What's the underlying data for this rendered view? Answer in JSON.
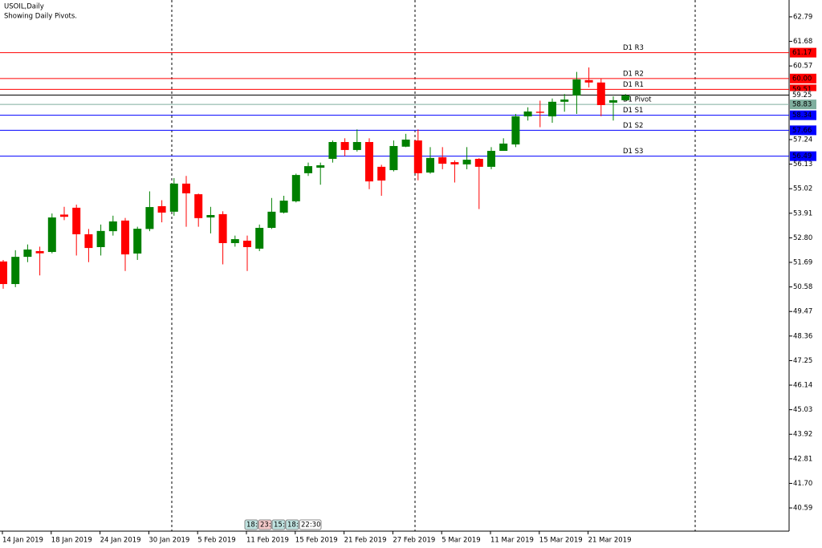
{
  "chart_data": {
    "type": "candlestick",
    "title": "USOIL,Daily",
    "subtitle": "Showing Daily Pivots.",
    "categories": [
      "14 Jan 2019",
      null,
      null,
      null,
      "18 Jan 2019",
      null,
      null,
      null,
      "24 Jan 2019",
      null,
      null,
      null,
      "30 Jan 2019",
      null,
      null,
      null,
      "5 Feb 2019",
      null,
      null,
      null,
      "11 Feb 2019",
      null,
      null,
      null,
      "15 Feb 2019",
      null,
      null,
      null,
      "21 Feb 2019",
      null,
      null,
      null,
      "27 Feb 2019",
      null,
      null,
      null,
      "5 Mar 2019",
      null,
      null,
      null,
      "11 Mar 2019",
      null,
      null,
      null,
      "15 Mar 2019",
      null,
      null,
      null,
      "21 Mar 2019",
      null,
      null,
      null
    ],
    "open": [
      51.73,
      50.71,
      51.94,
      52.2,
      52.16,
      53.85,
      54.16,
      52.96,
      52.38,
      53.1,
      53.58,
      52.09,
      53.2,
      54.23,
      53.98,
      55.25,
      54.77,
      53.72,
      53.87,
      52.56,
      52.67,
      52.31,
      53.25,
      53.94,
      54.45,
      55.72,
      55.97,
      56.37,
      57.13,
      56.77,
      57.13,
      56.01,
      55.86,
      56.92,
      57.2,
      55.75,
      56.44,
      56.22,
      56.12,
      56.37,
      56.01,
      56.73,
      57.02,
      58.29,
      58.5,
      58.29,
      58.95,
      59.23,
      59.93,
      59.82,
      58.91,
      59.02
    ],
    "high": [
      51.8,
      52.24,
      52.5,
      52.4,
      53.9,
      54.2,
      54.3,
      53.2,
      53.4,
      53.8,
      53.7,
      53.3,
      54.9,
      54.5,
      55.5,
      55.6,
      54.8,
      54.2,
      54.0,
      52.9,
      52.9,
      53.4,
      54.6,
      54.7,
      55.7,
      56.2,
      56.2,
      57.2,
      57.3,
      57.7,
      57.3,
      56.1,
      57.2,
      57.5,
      57.7,
      56.9,
      56.9,
      56.3,
      56.9,
      56.4,
      56.9,
      57.3,
      58.4,
      58.7,
      59.0,
      59.1,
      59.3,
      60.3,
      60.5,
      60.0,
      59.2,
      59.3
    ],
    "low": [
      50.5,
      50.57,
      51.7,
      51.1,
      52.1,
      53.6,
      52.0,
      51.7,
      52.0,
      52.9,
      51.3,
      51.8,
      53.1,
      53.5,
      53.8,
      53.3,
      53.3,
      53.0,
      51.6,
      52.4,
      51.3,
      52.2,
      53.2,
      53.9,
      54.4,
      55.6,
      55.2,
      56.2,
      56.5,
      56.7,
      55.0,
      54.7,
      55.8,
      56.9,
      55.4,
      55.7,
      55.9,
      55.3,
      55.9,
      54.1,
      55.9,
      56.9,
      56.9,
      58.1,
      57.8,
      58.0,
      58.5,
      58.4,
      59.6,
      58.3,
      58.1,
      59.0
    ],
    "close": [
      50.71,
      51.94,
      52.27,
      52.1,
      53.72,
      53.75,
      52.96,
      52.34,
      53.11,
      53.54,
      52.05,
      53.21,
      54.19,
      53.94,
      55.25,
      54.81,
      53.69,
      53.83,
      52.56,
      52.74,
      52.38,
      53.25,
      53.98,
      54.48,
      55.64,
      56.04,
      56.08,
      57.13,
      56.77,
      57.13,
      55.35,
      55.39,
      56.95,
      57.24,
      55.72,
      56.41,
      56.15,
      56.12,
      56.33,
      56.01,
      56.73,
      57.06,
      58.29,
      58.51,
      58.45,
      58.95,
      59.05,
      59.96,
      59.82,
      58.8,
      59.02,
      59.23
    ],
    "up_color": "#008000",
    "down_color": "#ff0000",
    "ylim": [
      39.54,
      63.55
    ],
    "yticks": [
      62.79,
      61.68,
      60.57,
      57.24,
      56.13,
      55.02,
      53.91,
      {
        "value": 52.8,
        "label": "52.80"
      },
      51.69,
      50.58,
      49.47,
      48.36,
      47.25,
      46.14,
      45.03,
      43.92,
      42.81,
      {
        "value": 41.7,
        "label": "41.70"
      },
      40.59
    ],
    "levels": [
      {
        "name": "D1 R3",
        "value": 61.17,
        "label": "61.17",
        "color": "#ff0000"
      },
      {
        "name": "D1 R2",
        "value": 60,
        "label": "60.00",
        "color": "#ff0000"
      },
      {
        "name": "D1 R1",
        "value": 59.51,
        "label": "59.51",
        "color": "#ff0000"
      },
      {
        "name": "D1 Pivot",
        "value": 58.83,
        "label": "58.83",
        "color": "#7fae9e"
      },
      {
        "name": "D1 S1",
        "value": 58.34,
        "label": "58.34",
        "color": "#0000ff"
      },
      {
        "name": "D1 S2",
        "value": 57.66,
        "label": "57.66",
        "color": "#0000ff"
      },
      {
        "name": "D1 S3",
        "value": 56.49,
        "label": "56.49",
        "color": "#0000ff"
      }
    ],
    "last_price": {
      "value": 59.25,
      "label": "59.25"
    },
    "session_clock": [
      "18:",
      "23:",
      "15:",
      "18:",
      "22:30"
    ]
  }
}
